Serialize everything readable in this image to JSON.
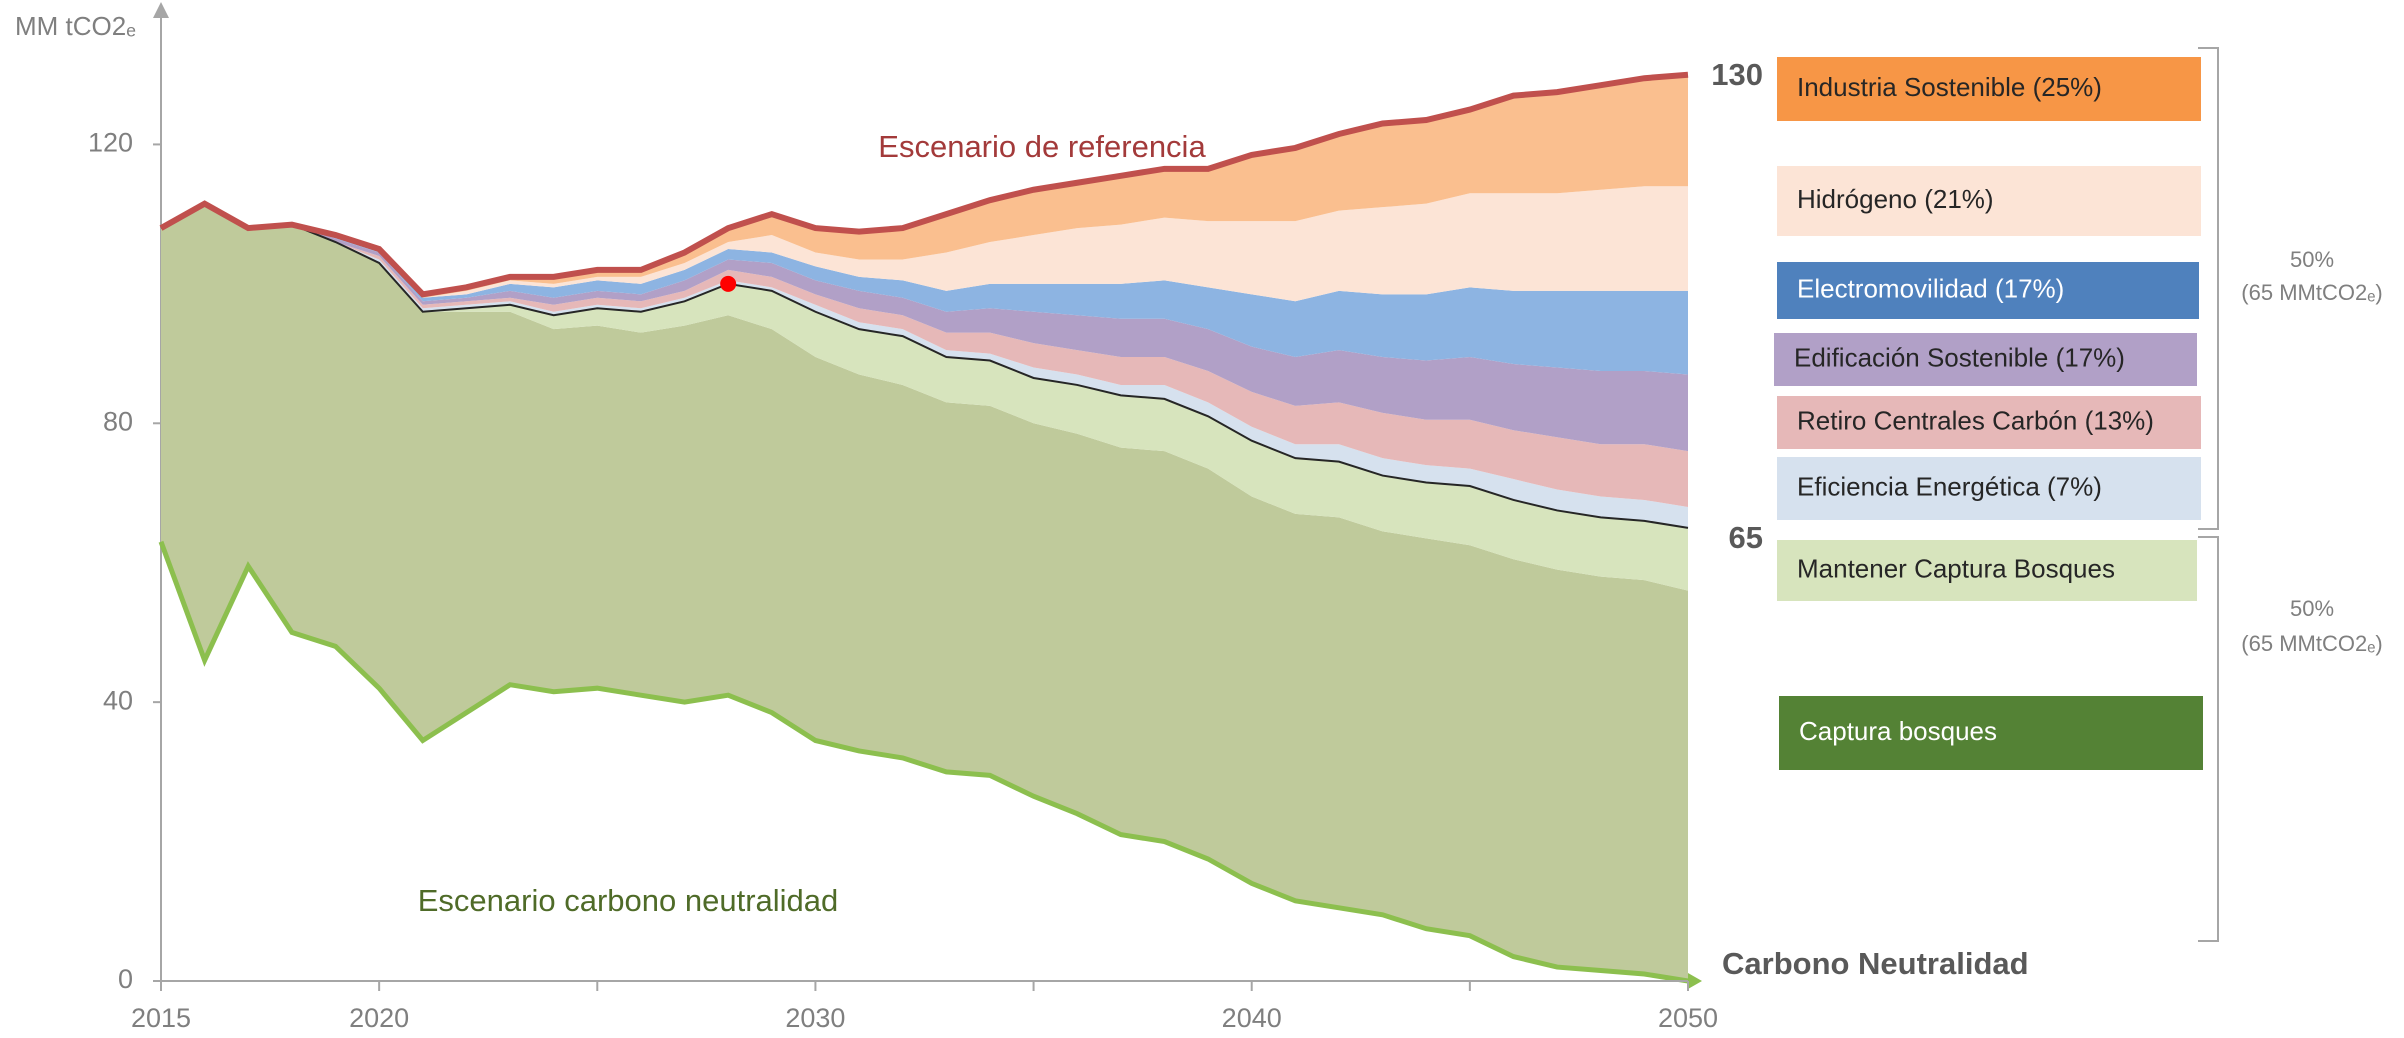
{
  "chart_data": {
    "type": "stacked-area",
    "ylabel": "MM tCO2ₑ",
    "x": [
      2015,
      2016,
      2017,
      2018,
      2019,
      2020,
      2021,
      2022,
      2023,
      2024,
      2025,
      2026,
      2027,
      2028,
      2029,
      2030,
      2031,
      2032,
      2033,
      2034,
      2035,
      2036,
      2037,
      2038,
      2039,
      2040,
      2041,
      2042,
      2043,
      2044,
      2045,
      2046,
      2047,
      2048,
      2049,
      2050
    ],
    "xlim": [
      2015,
      2050
    ],
    "xticks": [
      2015,
      2020,
      2025,
      2030,
      2035,
      2040,
      2045,
      2050
    ],
    "xtick_labels_shown": [
      2015,
      2020,
      2030,
      2040,
      2050
    ],
    "ylim": [
      0,
      140
    ],
    "yticks": [
      0,
      40,
      80,
      120
    ],
    "grid": false,
    "baseline": {
      "name": "Escenario carbono neutralidad",
      "color": "#8cbf4e",
      "text_color": "#4f6b28",
      "values": [
        63,
        46,
        59.5,
        50,
        48,
        42,
        34.5,
        38.5,
        42.5,
        41.5,
        42,
        41,
        40,
        41,
        38.5,
        34.5,
        33,
        32,
        30,
        29.5,
        26.5,
        24,
        21,
        20,
        17.5,
        14,
        11.5,
        10.5,
        9.5,
        7.5,
        6.5,
        3.5,
        2,
        1.5,
        1,
        0
      ]
    },
    "reference": {
      "name": "Escenario de referencia",
      "color": "#c0504d",
      "text_color": "#a33a3a",
      "values": [
        108,
        111.5,
        108,
        108.5,
        107,
        105,
        98.5,
        99.5,
        101,
        101,
        102,
        102,
        104.5,
        108,
        110,
        108,
        107.5,
        108,
        110,
        112,
        113.5,
        114.5,
        115.5,
        116.5,
        116.5,
        118.5,
        119.5,
        121.5,
        123,
        123.5,
        125,
        127,
        127.5,
        128.5,
        129.5,
        130
      ]
    },
    "series": [
      {
        "name": "Captura bosques",
        "color": "#bfca9b",
        "legend_color": "#548235",
        "legend_text_color": "#ffffff",
        "values": [
          45,
          65.5,
          48.5,
          58.5,
          58,
          61,
          61.5,
          57.5,
          53.5,
          52,
          52,
          52,
          54,
          54.5,
          55,
          55,
          54,
          53.5,
          53,
          53,
          53.5,
          54.5,
          55.5,
          56,
          56,
          55.5,
          55.5,
          56,
          55,
          56,
          56,
          57,
          57,
          56.5,
          56.5,
          56
        ]
      },
      {
        "name": "Mantener Captura Bosques",
        "color": "#d7e4bd",
        "legend_color": "#d7e4bd",
        "legend_text_color": "#262626",
        "values": [
          0,
          0,
          0,
          0,
          0,
          0,
          0,
          0.5,
          1,
          2,
          2.5,
          3,
          3.5,
          4.5,
          5.5,
          6.5,
          6.5,
          7,
          6.5,
          6.5,
          6.5,
          7,
          7.5,
          7.5,
          7.5,
          8,
          8,
          8,
          8,
          8,
          8.5,
          8.5,
          8.5,
          8.5,
          8.5,
          9
        ]
      },
      {
        "name": "Eficiencia Energética (7%)",
        "color": "#d6e1ee",
        "legend_color": "#d6e1ee",
        "legend_text_color": "#262626",
        "values": [
          0,
          0,
          0,
          0,
          0,
          0.5,
          0.5,
          0.5,
          0.5,
          0.5,
          0.5,
          0.5,
          0.5,
          0.5,
          0.5,
          1,
          1,
          1,
          1,
          1,
          1.5,
          1.5,
          1.5,
          2,
          2,
          2,
          2,
          2.5,
          2.5,
          2.5,
          2.5,
          3,
          3,
          3,
          3,
          3
        ]
      },
      {
        "name": "Retiro Centrales Carbón (13%)",
        "color": "#e6b8b8",
        "legend_color": "#e6b8b8",
        "legend_text_color": "#262626",
        "values": [
          0,
          0,
          0,
          0,
          0,
          0.5,
          0.5,
          0.5,
          0.5,
          1,
          1,
          1,
          1,
          1.5,
          1.5,
          1.5,
          2,
          2,
          2.5,
          3,
          3.5,
          3.5,
          4,
          4,
          4.5,
          5,
          5.5,
          6,
          6.5,
          6.5,
          7,
          7,
          7.5,
          7.5,
          8,
          8
        ]
      },
      {
        "name": "Edificación Sostenible (17%)",
        "color": "#b1a0c7",
        "legend_color": "#b1a0c7",
        "legend_text_color": "#262626",
        "values": [
          0,
          0,
          0,
          0,
          0.5,
          0.5,
          0.5,
          0.5,
          1,
          1,
          1,
          1,
          1.5,
          1.5,
          2,
          2,
          2.5,
          2.5,
          3,
          3.5,
          4.5,
          5,
          5.5,
          5.5,
          6,
          6.5,
          7,
          7.5,
          8,
          8.5,
          9,
          9.5,
          10,
          10.5,
          10.5,
          11
        ]
      },
      {
        "name": "Electromovilidad (17%)",
        "color": "#8db4e2",
        "legend_color": "#4f81bd",
        "legend_text_color": "#ffffff",
        "values": [
          0,
          0,
          0,
          0,
          0.5,
          0.5,
          0.5,
          0.5,
          1,
          1.5,
          1.5,
          1.5,
          1.5,
          1.5,
          1.5,
          2,
          2,
          2.5,
          3,
          3.5,
          4,
          4.5,
          5,
          5.5,
          6,
          7.5,
          8,
          8.5,
          9,
          9.5,
          10,
          10.5,
          11,
          11.5,
          11.5,
          12
        ]
      },
      {
        "name": "Hidrógeno (21%)",
        "color": "#fce4d6",
        "legend_color": "#fce4d6",
        "legend_text_color": "#262626",
        "values": [
          0,
          0,
          0,
          0,
          0,
          0,
          0,
          0.5,
          0.5,
          0.5,
          0.5,
          1,
          1,
          1,
          2.5,
          2,
          2.5,
          3,
          5.5,
          6,
          7,
          8,
          8.5,
          9,
          9.5,
          10.5,
          11.5,
          11.5,
          12.5,
          13,
          13.5,
          14,
          14,
          14.5,
          15,
          15
        ]
      },
      {
        "name": "Industria Sostenible (25%)",
        "color": "#fabf8f",
        "legend_color": "#f79646",
        "legend_text_color": "#262626",
        "values": [
          0,
          0,
          0,
          0,
          0,
          0,
          0.5,
          0.5,
          0.5,
          1,
          1,
          1,
          1.5,
          2,
          3,
          3.5,
          4,
          4.5,
          5.5,
          6,
          6.5,
          6.5,
          7,
          7,
          7.5,
          9.5,
          10.5,
          11,
          12,
          12,
          12,
          14,
          14.5,
          15,
          15.5,
          16
        ]
      }
    ],
    "highlight_point": {
      "x": 2028,
      "y": 100,
      "color": "#ff0000"
    },
    "end_labels": [
      130,
      65
    ],
    "zero_label": "Carbono Neutralidad",
    "brackets": [
      {
        "share": "50%",
        "amount": "(65 MMtCO2ₑ)"
      },
      {
        "share": "50%",
        "amount": "(65 MMtCO2ₑ)"
      }
    ]
  }
}
